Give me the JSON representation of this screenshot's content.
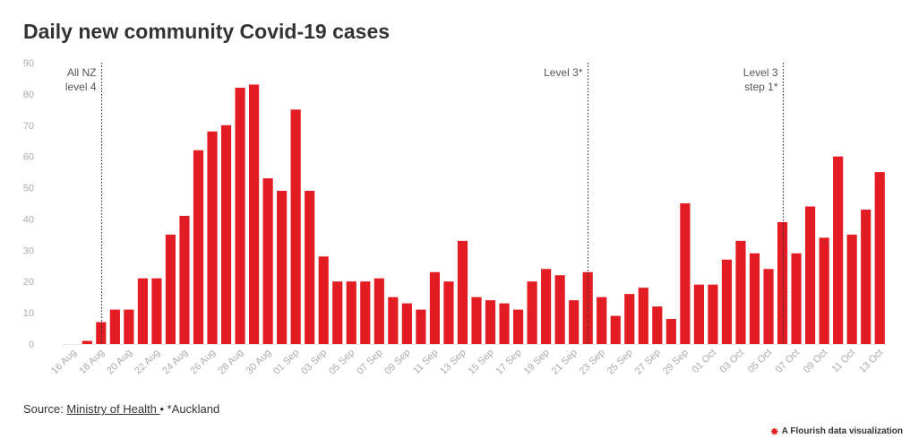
{
  "title": "Daily new community Covid-19 cases",
  "footer": {
    "source_prefix": "Source: ",
    "source_link": "Ministry of Health ",
    "source_suffix": "• *Auckland"
  },
  "branding": {
    "text": "A Flourish data visualization",
    "icon": "flourish-logo-icon"
  },
  "colors": {
    "bar": "#e31b23",
    "axis_text": "#aaaaaa",
    "annotation": "#333333"
  },
  "chart_data": {
    "type": "bar",
    "title": "Daily new community Covid-19 cases",
    "xlabel": "",
    "ylabel": "",
    "ylim": [
      0,
      90
    ],
    "yticks": [
      0,
      10,
      20,
      30,
      40,
      50,
      60,
      70,
      80,
      90
    ],
    "grid": false,
    "x": [
      "16 Aug",
      "17 Aug",
      "18 Aug",
      "19 Aug",
      "20 Aug",
      "21 Aug",
      "22 Aug",
      "23 Aug",
      "24 Aug",
      "25 Aug",
      "26 Aug",
      "27 Aug",
      "28 Aug",
      "29 Aug",
      "30 Aug",
      "31 Aug",
      "01 Sep",
      "02 Sep",
      "03 Sep",
      "04 Sep",
      "05 Sep",
      "06 Sep",
      "07 Sep",
      "08 Sep",
      "09 Sep",
      "10 Sep",
      "11 Sep",
      "12 Sep",
      "13 Sep",
      "14 Sep",
      "15 Sep",
      "16 Sep",
      "17 Sep",
      "18 Sep",
      "19 Sep",
      "20 Sep",
      "21 Sep",
      "22 Sep",
      "23 Sep",
      "24 Sep",
      "25 Sep",
      "26 Sep",
      "27 Sep",
      "28 Sep",
      "29 Sep",
      "30 Sep",
      "01 Oct",
      "02 Oct",
      "03 Oct",
      "04 Oct",
      "05 Oct",
      "06 Oct",
      "07 Oct",
      "08 Oct",
      "09 Oct",
      "10 Oct",
      "11 Oct",
      "12 Oct",
      "13 Oct"
    ],
    "tick_labels": [
      "16 Aug",
      "18 Aug",
      "20 Aug",
      "22 Aug",
      "24 Aug",
      "26 Aug",
      "28 Aug",
      "30 Aug",
      "01 Sep",
      "03 Sep",
      "05 Sep",
      "07 Sep",
      "09 Sep",
      "11 Sep",
      "13 Sep",
      "15 Sep",
      "17 Sep",
      "19 Sep",
      "21 Sep",
      "23 Sep",
      "25 Sep",
      "27 Sep",
      "29 Sep",
      "01 Oct",
      "03 Oct",
      "05 Oct",
      "07 Oct",
      "09 Oct",
      "11 Oct",
      "13 Oct"
    ],
    "values": [
      0,
      1,
      7,
      11,
      11,
      21,
      21,
      35,
      41,
      62,
      68,
      70,
      82,
      83,
      53,
      49,
      75,
      49,
      28,
      20,
      20,
      20,
      21,
      15,
      13,
      11,
      23,
      20,
      33,
      15,
      14,
      13,
      11,
      20,
      24,
      22,
      14,
      23,
      15,
      9,
      16,
      18,
      12,
      8,
      45,
      19,
      19,
      27,
      33,
      29,
      24,
      39,
      29,
      44,
      34,
      60,
      35,
      43,
      55
    ],
    "annotations": [
      {
        "x": "18 Aug",
        "lines": [
          "All NZ",
          "level 4"
        ],
        "anchor": "end"
      },
      {
        "x": "22 Sep",
        "lines": [
          "Level 3*"
        ],
        "anchor": "end"
      },
      {
        "x": "06 Oct",
        "lines": [
          "Level 3",
          "step 1*"
        ],
        "anchor": "end"
      }
    ]
  }
}
